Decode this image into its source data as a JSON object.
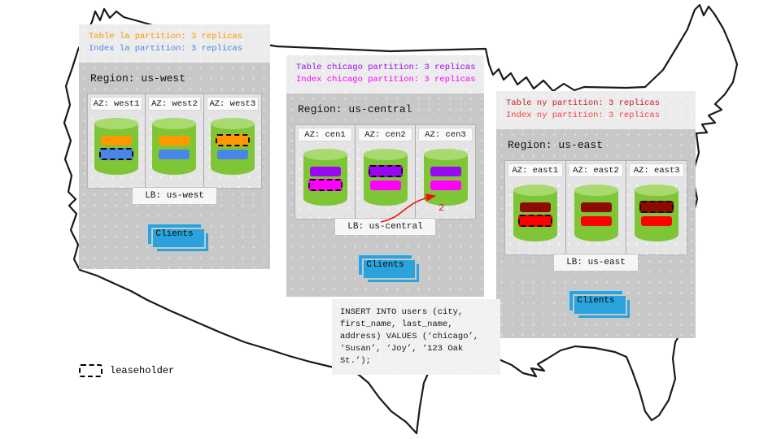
{
  "palette": {
    "cylinder-green": "#7EC636",
    "cylinder-top": "#A8DA70",
    "clients-blue": "#2AA3DC",
    "panel-gray": "#C8C8C8",
    "legend-gray": "#ECECEC",
    "map-outline": "#1A1A1A",
    "arrow-red": "#F10F0F"
  },
  "regions": [
    {
      "title": "Region: us-west",
      "legend": [
        {
          "text": "Table la partition: 3 replicas",
          "color": "#FF9800"
        },
        {
          "text": "Index la partition: 3 replicas",
          "color": "#4A86E8"
        }
      ],
      "azs": [
        {
          "label": "AZ: west1",
          "bars": [
            {
              "color": "#FF9800",
              "leaseholder": false
            },
            {
              "color": "#4A86E8",
              "leaseholder": true
            }
          ]
        },
        {
          "label": "AZ: west2",
          "bars": [
            {
              "color": "#FF9800",
              "leaseholder": false
            },
            {
              "color": "#4A86E8",
              "leaseholder": false
            }
          ]
        },
        {
          "label": "AZ: west3",
          "bars": [
            {
              "color": "#FF9800",
              "leaseholder": true
            },
            {
              "color": "#4A86E8",
              "leaseholder": false
            }
          ]
        }
      ],
      "lb_label": "LB: us-west",
      "clients_label": "Clients"
    },
    {
      "title": "Region: us-central",
      "legend": [
        {
          "text": "Table chicago partition: 3 replicas",
          "color": "#9B06F5"
        },
        {
          "text": "Index chicago partition: 3 replicas",
          "color": "#FF00FF"
        }
      ],
      "azs": [
        {
          "label": "AZ: cen1",
          "bars": [
            {
              "color": "#9B06F5",
              "leaseholder": false
            },
            {
              "color": "#FF00FF",
              "leaseholder": true
            }
          ]
        },
        {
          "label": "AZ: cen2",
          "bars": [
            {
              "color": "#9B06F5",
              "leaseholder": true
            },
            {
              "color": "#FF00FF",
              "leaseholder": false
            }
          ]
        },
        {
          "label": "AZ: cen3",
          "bars": [
            {
              "color": "#9B06F5",
              "leaseholder": false
            },
            {
              "color": "#FF00FF",
              "leaseholder": false
            }
          ]
        }
      ],
      "lb_label": "LB: us-central",
      "clients_label": "Clients"
    },
    {
      "title": "Region: us-east",
      "legend": [
        {
          "text": "Table ny partition: 3 replicas",
          "color": "#C81E1E"
        },
        {
          "text": "Index ny partition: 3 replicas",
          "color": "#FF3B3B"
        }
      ],
      "azs": [
        {
          "label": "AZ: east1",
          "bars": [
            {
              "color": "#8E0B00",
              "leaseholder": false
            },
            {
              "color": "#FF0000",
              "leaseholder": true
            }
          ]
        },
        {
          "label": "AZ: east2",
          "bars": [
            {
              "color": "#8E0B00",
              "leaseholder": false
            },
            {
              "color": "#FF0000",
              "leaseholder": false
            }
          ]
        },
        {
          "label": "AZ: east3",
          "bars": [
            {
              "color": "#8E0B00",
              "leaseholder": true
            },
            {
              "color": "#FF0000",
              "leaseholder": false
            }
          ]
        }
      ],
      "lb_label": "LB: us-east",
      "clients_label": "Clients"
    }
  ],
  "sql_box": {
    "text": "INSERT INTO users (city,\nfirst_name, last_name,\naddress) VALUES (‘chicago’,\n‘Susan’, ‘Joy’, ‘123 Oak\nSt.’);"
  },
  "annotation": {
    "step_label": "2"
  },
  "map_key": {
    "leaseholder_label": "leaseholder"
  }
}
